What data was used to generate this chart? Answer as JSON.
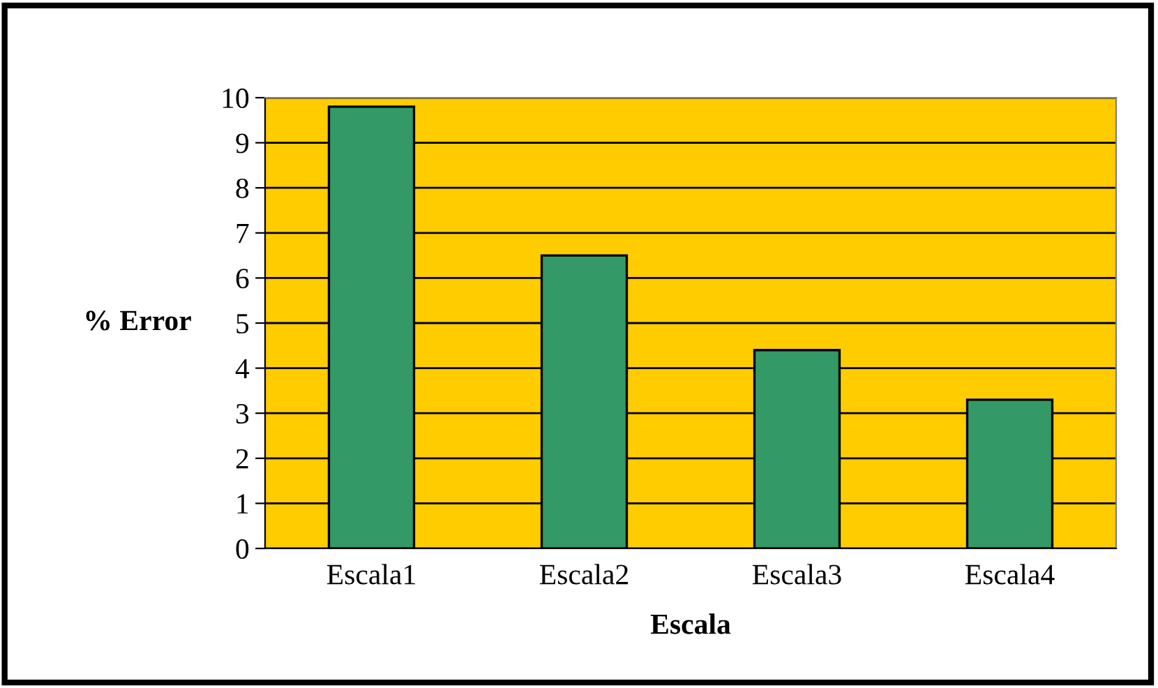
{
  "chart_data": {
    "type": "bar",
    "xlabel": "Escala",
    "ylabel": "% Error",
    "categories": [
      "Escala1",
      "Escala2",
      "Escala3",
      "Escala4"
    ],
    "values": [
      9.8,
      6.5,
      4.4,
      3.3
    ],
    "color": "#339966",
    "ylim": [
      0,
      10
    ],
    "yticks": [
      0,
      1,
      2,
      3,
      4,
      5,
      6,
      7,
      8,
      9,
      10
    ],
    "grid": "y"
  }
}
